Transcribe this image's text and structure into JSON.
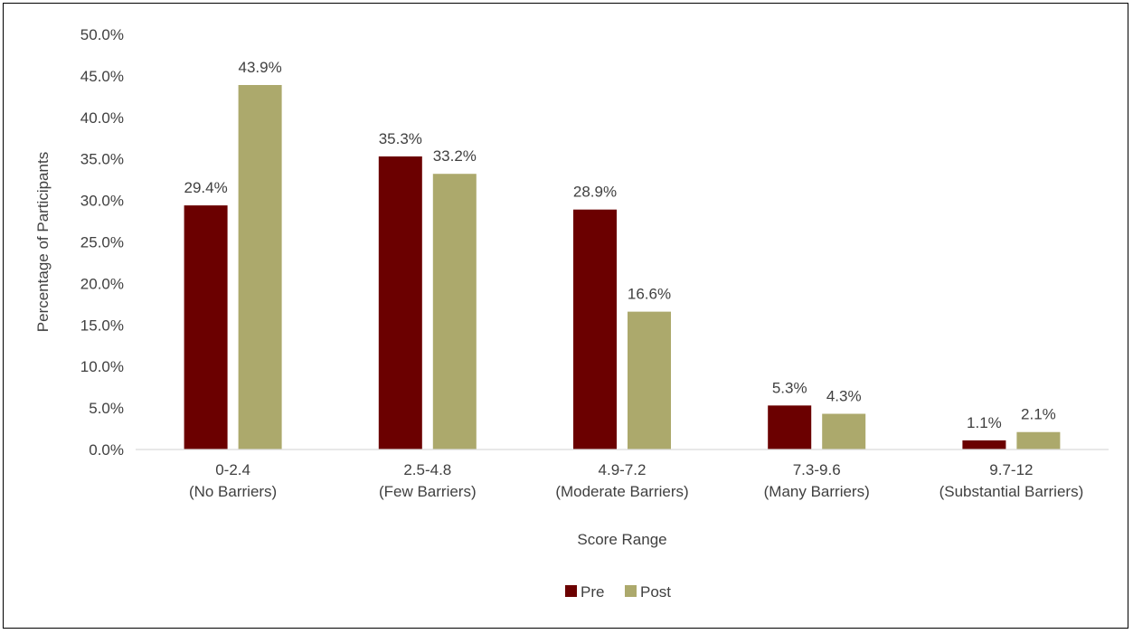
{
  "chart_data": {
    "type": "bar",
    "title": "",
    "xlabel": "Score Range",
    "ylabel": "Percentage of Participants",
    "ylim": [
      0,
      50
    ],
    "y_ticks": [
      "0.0%",
      "5.0%",
      "10.0%",
      "15.0%",
      "20.0%",
      "25.0%",
      "30.0%",
      "35.0%",
      "40.0%",
      "45.0%",
      "50.0%"
    ],
    "grid": false,
    "legend_position": "bottom",
    "categories": [
      [
        "0-2.4",
        "(No Barriers)"
      ],
      [
        "2.5-4.8",
        "(Few Barriers)"
      ],
      [
        "4.9-7.2",
        "(Moderate Barriers)"
      ],
      [
        "7.3-9.6",
        "(Many Barriers)"
      ],
      [
        "9.7-12",
        "(Substantial Barriers)"
      ]
    ],
    "series": [
      {
        "name": "Pre",
        "color": "#6b0000",
        "values": [
          29.4,
          35.3,
          28.9,
          5.3,
          1.1
        ],
        "labels": [
          "29.4%",
          "35.3%",
          "28.9%",
          "5.3%",
          "1.1%"
        ]
      },
      {
        "name": "Post",
        "color": "#aca96c",
        "values": [
          43.9,
          33.2,
          16.6,
          4.3,
          2.1
        ],
        "labels": [
          "43.9%",
          "33.2%",
          "16.6%",
          "4.3%",
          "2.1%"
        ]
      }
    ]
  }
}
